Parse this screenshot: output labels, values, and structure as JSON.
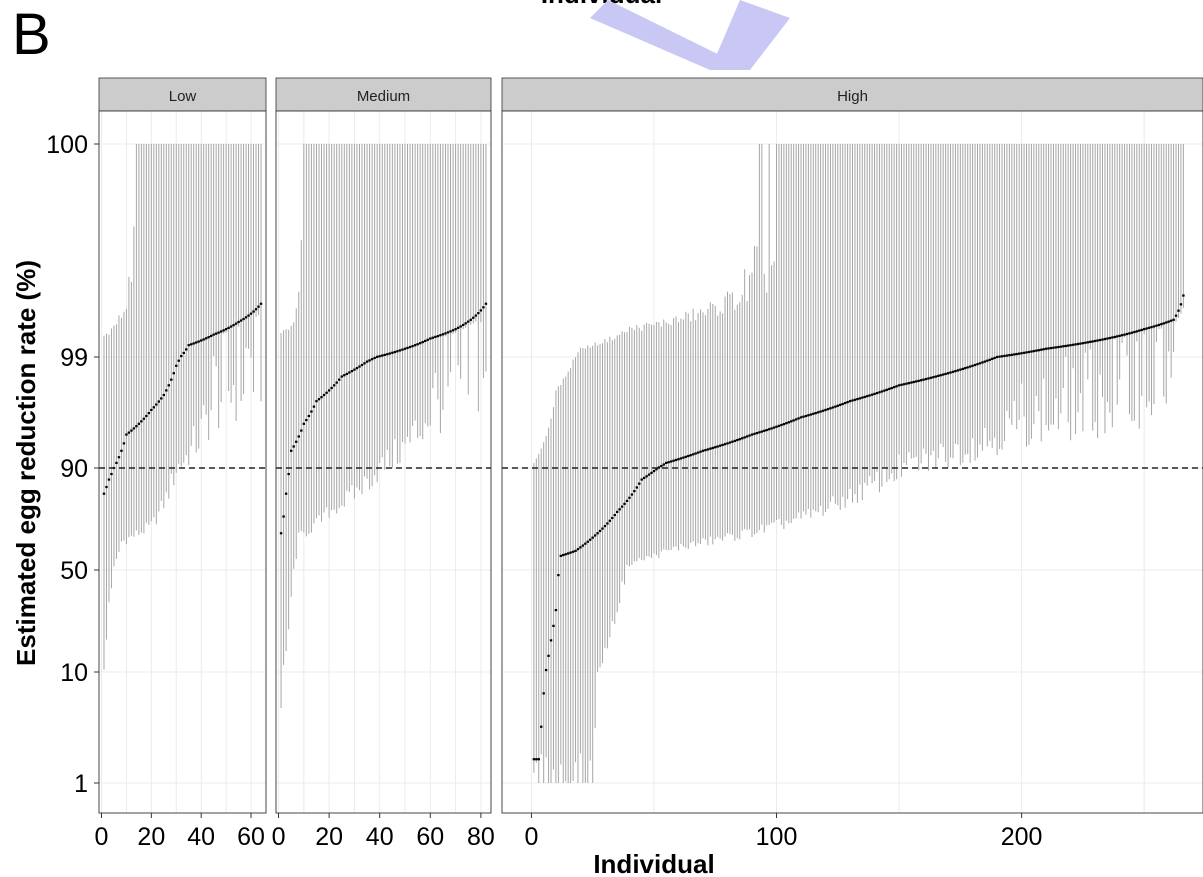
{
  "figure": {
    "panel_letter": "B",
    "top_cut_title": "Individual",
    "watermark_color": "#c9c8f5"
  },
  "chart_data": {
    "type": "scatter",
    "subtype": "ranked point estimates with credible-interval error bars, faceted",
    "xlabel": "Individual",
    "ylabel": "Estimated egg reduction rate (%)",
    "y_scale": "logit-like (compressed near 100%)",
    "y_ticks": [
      "1",
      "10",
      "50",
      "90",
      "99",
      "100"
    ],
    "reference_line": {
      "y": 90,
      "style": "dashed"
    },
    "grid": true,
    "colors": {
      "point": "#000000",
      "interval": "#a6a6a6",
      "strip": "#cccccc",
      "grid": "#ebebeb",
      "frame": "#333333"
    },
    "facets": [
      {
        "label": "Low",
        "n": 64,
        "xlim": [
          -1,
          66
        ],
        "x_ticks": [
          "0",
          "20",
          "40",
          "60"
        ],
        "x_tick_values": [
          0,
          20,
          40,
          60
        ],
        "estimate_profile": [
          [
            1,
            85
          ],
          [
            3,
            88
          ],
          [
            6,
            91
          ],
          [
            10,
            95
          ],
          [
            15,
            96
          ],
          [
            20,
            97
          ],
          [
            25,
            97.8
          ],
          [
            30,
            98.8
          ],
          [
            35,
            99.4
          ],
          [
            45,
            99.62
          ],
          [
            55,
            99.78
          ],
          [
            64,
            99.9
          ]
        ],
        "lower_profile": [
          [
            1,
            10
          ],
          [
            3,
            40
          ],
          [
            8,
            68
          ],
          [
            20,
            75
          ],
          [
            30,
            90
          ],
          [
            45,
            97.5
          ],
          [
            64,
            99.3
          ]
        ],
        "upper_profile": [
          [
            1,
            99.6
          ],
          [
            10,
            99.9
          ],
          [
            15,
            100
          ],
          [
            64,
            100
          ]
        ]
      },
      {
        "label": "Medium",
        "n": 82,
        "xlim": [
          -1,
          84
        ],
        "x_ticks": [
          "0",
          "20",
          "40",
          "60",
          "80"
        ],
        "x_tick_values": [
          0,
          20,
          40,
          60,
          80
        ],
        "estimate_profile": [
          [
            1,
            72
          ],
          [
            3,
            85
          ],
          [
            5,
            93
          ],
          [
            10,
            96
          ],
          [
            15,
            97.5
          ],
          [
            25,
            98.5
          ],
          [
            35,
            98.9
          ],
          [
            50,
            99.3
          ],
          [
            60,
            99.55
          ],
          [
            70,
            99.7
          ],
          [
            82,
            99.9
          ]
        ],
        "lower_profile": [
          [
            1,
            5
          ],
          [
            3,
            20
          ],
          [
            8,
            70
          ],
          [
            20,
            80
          ],
          [
            40,
            90
          ],
          [
            60,
            97
          ],
          [
            82,
            99.3
          ]
        ],
        "upper_profile": [
          [
            1,
            99.6
          ],
          [
            8,
            99.9
          ],
          [
            10,
            100
          ],
          [
            82,
            100
          ]
        ]
      },
      {
        "label": "High",
        "n": 266,
        "xlim": [
          -12,
          274
        ],
        "x_ticks": [
          "0",
          "100",
          "200"
        ],
        "x_tick_values": [
          0,
          100,
          200
        ],
        "estimate_profile": [
          [
            3,
            3
          ],
          [
            6,
            11
          ],
          [
            8,
            25
          ],
          [
            10,
            37
          ],
          [
            12,
            60
          ],
          [
            18,
            63
          ],
          [
            25,
            70
          ],
          [
            35,
            80
          ],
          [
            45,
            88
          ],
          [
            55,
            91
          ],
          [
            70,
            93
          ],
          [
            90,
            95
          ],
          [
            110,
            96.5
          ],
          [
            130,
            97.5
          ],
          [
            150,
            98.2
          ],
          [
            170,
            98.6
          ],
          [
            190,
            99.0
          ],
          [
            210,
            99.3
          ],
          [
            230,
            99.5
          ],
          [
            250,
            99.7
          ],
          [
            262,
            99.8
          ],
          [
            266,
            99.93
          ]
        ],
        "lower_profile": [
          [
            1,
            1
          ],
          [
            25,
            1
          ],
          [
            30,
            20
          ],
          [
            40,
            55
          ],
          [
            60,
            65
          ],
          [
            100,
            75
          ],
          [
            150,
            90
          ],
          [
            200,
            96
          ],
          [
            230,
            97
          ],
          [
            255,
            98.5
          ],
          [
            266,
            99.2
          ]
        ],
        "upper_profile": [
          [
            1,
            91
          ],
          [
            10,
            98
          ],
          [
            20,
            99.3
          ],
          [
            40,
            99.7
          ],
          [
            60,
            99.8
          ],
          [
            80,
            99.9
          ],
          [
            100,
            100
          ],
          [
            266,
            100
          ]
        ]
      }
    ]
  }
}
